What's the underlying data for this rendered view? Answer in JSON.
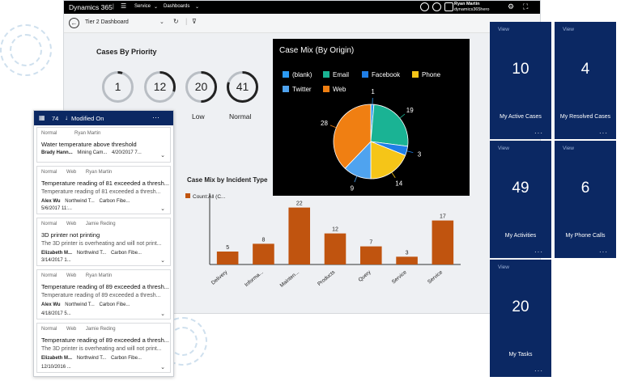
{
  "topbar": {
    "brand": "Dynamics 365",
    "nav_service": "Service",
    "nav_dashboards": "Dashboards",
    "user_name": "Ryan Martin",
    "user_org": "dynamics365hero"
  },
  "subbar": {
    "dashboard_name": "Tier 2 Dashboard"
  },
  "priority": {
    "title": "Cases By Priority",
    "rings": [
      {
        "value": "1",
        "label": "",
        "fill": 0.05
      },
      {
        "value": "12",
        "label": "",
        "fill": 0.3
      },
      {
        "value": "20",
        "label": "Low",
        "fill": 0.5
      },
      {
        "value": "41",
        "label": "Normal",
        "fill": 0.8
      }
    ]
  },
  "case_mix_origin": {
    "title": "Case Mix (By Origin)",
    "legend": [
      {
        "name": "(blank)",
        "color": "#2b9af3"
      },
      {
        "name": "Email",
        "color": "#1ab394"
      },
      {
        "name": "Facebook",
        "color": "#1f7ee6"
      },
      {
        "name": "Phone",
        "color": "#f5c518"
      },
      {
        "name": "Twitter",
        "color": "#4fa3ef"
      },
      {
        "name": "Web",
        "color": "#f07f12"
      }
    ]
  },
  "incident": {
    "title": "Case Mix by Incident Type",
    "legend": "Count:All (C..."
  },
  "chart_data": [
    {
      "type": "pie",
      "title": "Case Mix (By Origin)",
      "categories": [
        "(blank)",
        "Email",
        "Facebook",
        "Phone",
        "Twitter",
        "Web"
      ],
      "values": [
        1,
        19,
        3,
        14,
        9,
        28
      ],
      "colors": [
        "#2b9af3",
        "#1ab394",
        "#1f7ee6",
        "#f5c518",
        "#4fa3ef",
        "#f07f12"
      ],
      "legend": "top"
    },
    {
      "type": "bar",
      "title": "Case Mix by Incident Type",
      "categories": [
        "Delivery",
        "Informa...",
        "Mainten...",
        "Products",
        "Query",
        "Service",
        "Service"
      ],
      "series": [
        {
          "name": "Count:All (C...",
          "values": [
            5,
            8,
            22,
            12,
            7,
            3,
            17
          ]
        }
      ],
      "ylim": [
        0,
        25
      ],
      "color": "#c0540f"
    }
  ],
  "tasklist": {
    "count": "74",
    "sort_label": "Modified On",
    "cards": [
      {
        "priority": "Normal",
        "channel": "",
        "owner": "Ryan Martin",
        "title": "Water temperature above threshold",
        "description": "",
        "customer": "Brady Hann...",
        "product": "Mining Cam...",
        "date": "4/20/2017 7..."
      },
      {
        "priority": "Normal",
        "channel": "Web",
        "owner": "Ryan Martin",
        "title": "Temperature reading of 81 exceeded a thresh...",
        "description": "Temperature reading of 81 exceeded a thresh...",
        "customer": "Alex Wu",
        "account": "Northwind T...",
        "product": "Carbon Fibe...",
        "date": "5/6/2017 11:..."
      },
      {
        "priority": "Normal",
        "channel": "Web",
        "owner": "Jamie Reding",
        "title": "3D printer not printing",
        "description": "The 3D printer is overheating and will not print...",
        "customer": "Elizabeth M...",
        "account": "Northwind T...",
        "product": "Carbon Fibe...",
        "date": "3/14/2017 1..."
      },
      {
        "priority": "Normal",
        "channel": "Web",
        "owner": "Ryan Martin",
        "title": "Temperature reading of 89 exceeded a thresh...",
        "description": "Temperature reading of 89 exceeded a thresh...",
        "customer": "Alex Wu",
        "account": "Northwind T...",
        "product": "Carbon Fibe...",
        "date": "4/18/2017 5..."
      },
      {
        "priority": "Normal",
        "channel": "Web",
        "owner": "Jamie Reding",
        "title": "Temperature reading of 89 exceeded a thresh...",
        "description": "The 3D printer is overheating and will not print...",
        "customer": "Elizabeth M...",
        "account": "Northwind T...",
        "product": "Carbon Fibe...",
        "date": "12/10/2016 ..."
      }
    ]
  },
  "tiles": [
    {
      "view": "View",
      "value": "10",
      "label": "My Active Cases"
    },
    {
      "view": "View",
      "value": "4",
      "label": "My Resolved Cases"
    },
    {
      "view": "View",
      "value": "49",
      "label": "My Activities"
    },
    {
      "view": "View",
      "value": "6",
      "label": "My Phone Calls"
    },
    {
      "view": "View",
      "value": "20",
      "label": "My Tasks"
    }
  ]
}
